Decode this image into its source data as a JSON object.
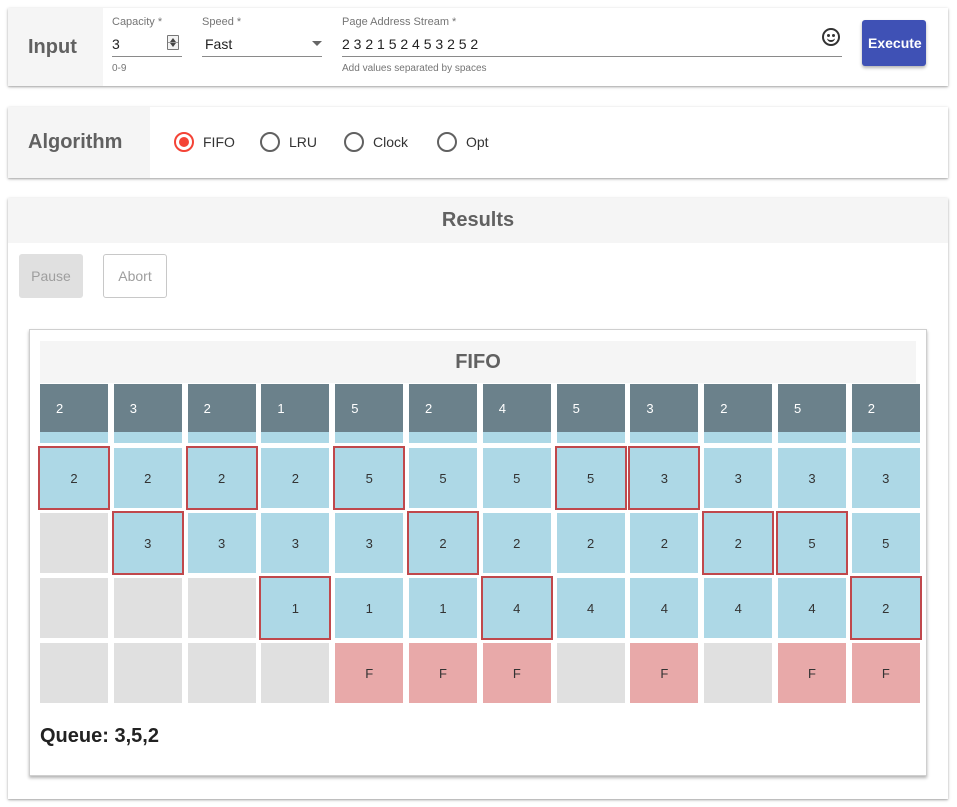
{
  "input": {
    "title": "Input",
    "capacity": {
      "label": "Capacity *",
      "value": "3",
      "helper": "0-9"
    },
    "speed": {
      "label": "Speed *",
      "value": "Fast"
    },
    "stream": {
      "label": "Page Address Stream *",
      "value": "2 3 2 1 5 2 4 5 3 2 5 2",
      "helper": "Add values separated by spaces"
    },
    "execute_label": "Execute"
  },
  "algorithm": {
    "title": "Algorithm",
    "options": [
      {
        "label": "FIFO",
        "selected": true
      },
      {
        "label": "LRU",
        "selected": false
      },
      {
        "label": "Clock",
        "selected": false
      },
      {
        "label": "Opt",
        "selected": false
      }
    ]
  },
  "results": {
    "title": "Results",
    "pause_label": "Pause",
    "abort_label": "Abort",
    "algo_title": "FIFO",
    "stream": [
      "2",
      "3",
      "2",
      "1",
      "5",
      "2",
      "4",
      "5",
      "3",
      "2",
      "5",
      "2"
    ],
    "frames": [
      [
        "2",
        "2",
        "2",
        "2",
        "5",
        "5",
        "5",
        "5",
        "3",
        "3",
        "3",
        "3"
      ],
      [
        "",
        "3",
        "3",
        "3",
        "3",
        "2",
        "2",
        "2",
        "2",
        "2",
        "5",
        "5"
      ],
      [
        "",
        "",
        "",
        "1",
        "1",
        "1",
        "4",
        "4",
        "4",
        "4",
        "4",
        "2"
      ]
    ],
    "highlight": [
      [
        true,
        false,
        true,
        false,
        true,
        false,
        false,
        true,
        true,
        false,
        false,
        false
      ],
      [
        false,
        true,
        false,
        false,
        false,
        true,
        false,
        false,
        false,
        true,
        true,
        false
      ],
      [
        false,
        false,
        false,
        true,
        false,
        false,
        true,
        false,
        false,
        false,
        false,
        true
      ]
    ],
    "faults": [
      "",
      "",
      "",
      "",
      "F",
      "F",
      "F",
      "",
      "F",
      "",
      "F",
      "F"
    ],
    "queue_label": "Queue: 3,5,2"
  },
  "colors": {
    "accent": "#3f51b5",
    "radio_selected": "#f44336",
    "header_cell": "#6b818b",
    "frame_cell": "#add8e6",
    "empty_cell": "#e0e0e0",
    "fault_cell": "#e8a9a9",
    "highlight_border": "#c0484c"
  }
}
